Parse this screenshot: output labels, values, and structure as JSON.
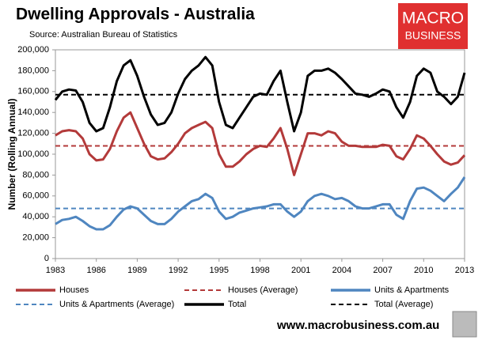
{
  "chart_data": {
    "type": "line",
    "title": "Dwelling Approvals - Australia",
    "subtitle": "Source: Australian Bureau of Statistics",
    "ylabel": "Number (Rolling Annual)",
    "brand": [
      "MACRO",
      "BUSINESS"
    ],
    "website": "www.macrobusiness.com.au",
    "x": [
      1983,
      1983.5,
      1984,
      1984.5,
      1985,
      1985.5,
      1986,
      1986.5,
      1987,
      1987.5,
      1988,
      1988.5,
      1989,
      1989.5,
      1990,
      1990.5,
      1991,
      1991.5,
      1992,
      1992.5,
      1993,
      1993.5,
      1994,
      1994.5,
      1995,
      1995.5,
      1996,
      1996.5,
      1997,
      1997.5,
      1998,
      1998.5,
      1999,
      1999.5,
      2000,
      2000.5,
      2001,
      2001.5,
      2002,
      2002.5,
      2003,
      2003.5,
      2004,
      2004.5,
      2005,
      2005.5,
      2006,
      2006.5,
      2007,
      2007.5,
      2008,
      2008.5,
      2009,
      2009.5,
      2010,
      2010.5,
      2011,
      2011.5,
      2012,
      2012.5,
      2013
    ],
    "series": [
      {
        "name": "Houses",
        "color": "#b33a3a",
        "values": [
          118000,
          122000,
          123000,
          122000,
          115000,
          100000,
          94000,
          95000,
          105000,
          122000,
          135000,
          140000,
          125000,
          110000,
          98000,
          95000,
          96000,
          102000,
          110000,
          120000,
          125000,
          128000,
          131000,
          125000,
          100000,
          88000,
          88000,
          93000,
          100000,
          105000,
          108000,
          107000,
          115000,
          125000,
          105000,
          80000,
          100000,
          120000,
          120000,
          118000,
          122000,
          120000,
          112000,
          108000,
          108000,
          107000,
          107000,
          107000,
          109000,
          108000,
          98000,
          95000,
          105000,
          118000,
          115000,
          108000,
          100000,
          93000,
          90000,
          92000,
          99000
        ]
      },
      {
        "name": "Units & Apartments",
        "color": "#4f86c0",
        "values": [
          33000,
          37000,
          38000,
          40000,
          36000,
          31000,
          28000,
          28000,
          32000,
          40000,
          47000,
          50000,
          48000,
          42000,
          36000,
          33000,
          33000,
          38000,
          45000,
          50000,
          55000,
          57000,
          62000,
          58000,
          45000,
          38000,
          40000,
          44000,
          46000,
          48000,
          49000,
          50000,
          52000,
          52000,
          45000,
          40000,
          45000,
          55000,
          60000,
          62000,
          60000,
          57000,
          58000,
          55000,
          50000,
          48000,
          48000,
          50000,
          52000,
          52000,
          42000,
          38000,
          55000,
          67000,
          68000,
          65000,
          60000,
          55000,
          62000,
          68000,
          78000
        ]
      },
      {
        "name": "Total",
        "color": "#000000",
        "values": [
          152000,
          160000,
          162000,
          161000,
          150000,
          130000,
          122000,
          125000,
          145000,
          170000,
          185000,
          190000,
          175000,
          155000,
          138000,
          128000,
          130000,
          140000,
          158000,
          172000,
          180000,
          185000,
          193000,
          185000,
          150000,
          128000,
          125000,
          135000,
          145000,
          155000,
          158000,
          157000,
          170000,
          180000,
          150000,
          122000,
          140000,
          175000,
          180000,
          180000,
          182000,
          178000,
          172000,
          165000,
          158000,
          157000,
          155000,
          158000,
          162000,
          160000,
          145000,
          135000,
          150000,
          175000,
          182000,
          178000,
          160000,
          155000,
          148000,
          155000,
          178000
        ]
      }
    ],
    "reference_lines": [
      {
        "name": "Houses (Average)",
        "color": "#b33a3a",
        "value": 108000
      },
      {
        "name": "Units & Apartments (Average)",
        "color": "#4f86c0",
        "value": 48000
      },
      {
        "name": "Total (Average)",
        "color": "#000000",
        "value": 157000
      }
    ],
    "xlim": [
      1983,
      2013
    ],
    "xticks": [
      1983,
      1986,
      1989,
      1992,
      1995,
      1998,
      2001,
      2004,
      2007,
      2010,
      2013
    ],
    "ylim": [
      0,
      200000
    ],
    "yticks": [
      0,
      {
        "value": 20000,
        "label": "20,000"
      },
      {
        "value": 40000,
        "label": "40,000"
      },
      {
        "value": 60000,
        "label": "60,000"
      },
      {
        "value": 80000,
        "label": "80,000"
      },
      {
        "value": 100000,
        "label": "100,000"
      },
      {
        "value": 120000,
        "label": "120,000"
      },
      {
        "value": 140000,
        "label": "140,000"
      },
      {
        "value": 160000,
        "label": "160,000"
      },
      {
        "value": 180000,
        "label": "180,000"
      },
      {
        "value": 200000,
        "label": "200,000"
      }
    ],
    "grid": false
  }
}
